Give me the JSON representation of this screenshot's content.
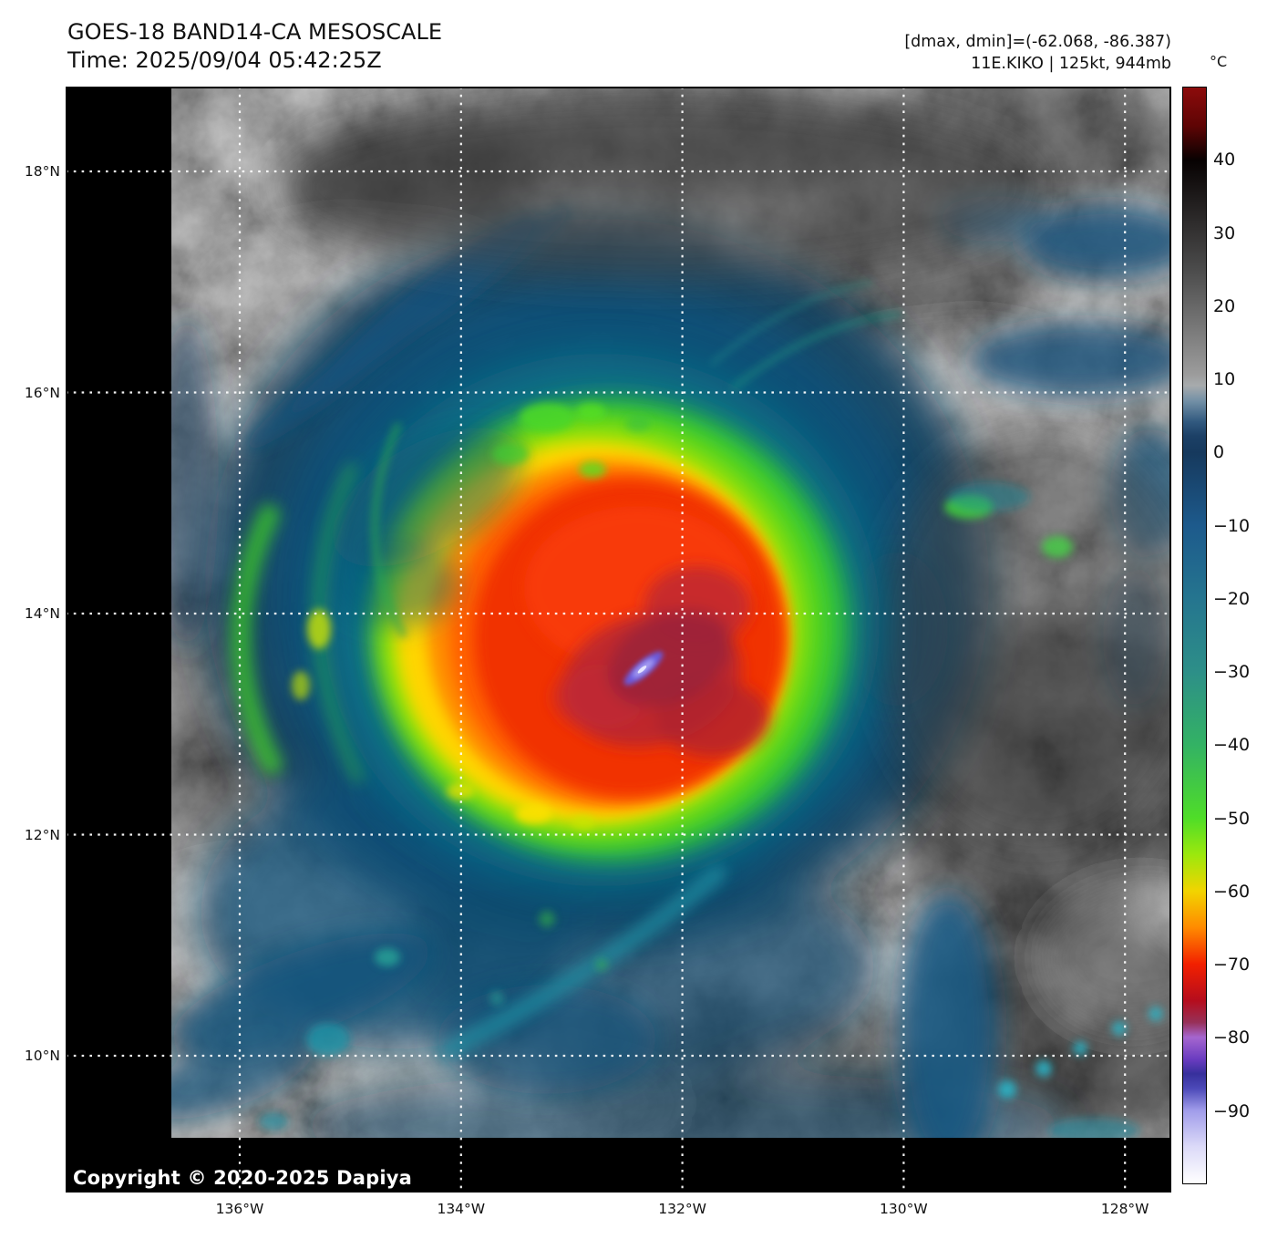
{
  "header": {
    "title": "GOES-18 BAND14-CA MESOSCALE",
    "time": "Time: 2025/09/04 05:42:25Z",
    "dmax_dmin": "[dmax, dmin]=(-62.068, -86.387)",
    "storm_info": "11E.KIKO | 125kt, 944mb"
  },
  "colorbar": {
    "unit": "°C",
    "top_value": 50,
    "bottom_value": -100,
    "ticks": [
      {
        "label": "40",
        "value": 40
      },
      {
        "label": "30",
        "value": 30
      },
      {
        "label": "20",
        "value": 20
      },
      {
        "label": "10",
        "value": 10
      },
      {
        "label": "0",
        "value": 0
      },
      {
        "label": "−10",
        "value": -10
      },
      {
        "label": "−20",
        "value": -20
      },
      {
        "label": "−30",
        "value": -30
      },
      {
        "label": "−40",
        "value": -40
      },
      {
        "label": "−50",
        "value": -50
      },
      {
        "label": "−60",
        "value": -60
      },
      {
        "label": "−70",
        "value": -70
      },
      {
        "label": "−80",
        "value": -80
      },
      {
        "label": "−90",
        "value": -90
      }
    ],
    "colors": {
      "warm_top": "#8c0b0b",
      "black": "#070202",
      "gray": "#9c9c9c",
      "navy": "#16395d",
      "blue": "#1d5a8c",
      "teal": "#2d8f88",
      "green": "#4fdd28",
      "yellow": "#f2d400",
      "orange": "#ff8a00",
      "red": "#f22000",
      "dark_red": "#b50d1d",
      "purple": "#a566cf",
      "indigo": "#37309c",
      "lavender": "#a09cea",
      "white": "#ffffff"
    }
  },
  "map": {
    "latitudes": [
      "18°N",
      "16°N",
      "14°N",
      "12°N",
      "10°N"
    ],
    "longitudes": [
      "136°W",
      "134°W",
      "132°W",
      "130°W",
      "128°W"
    ],
    "copyright": "Copyright © 2020-2025 Dapiya"
  }
}
